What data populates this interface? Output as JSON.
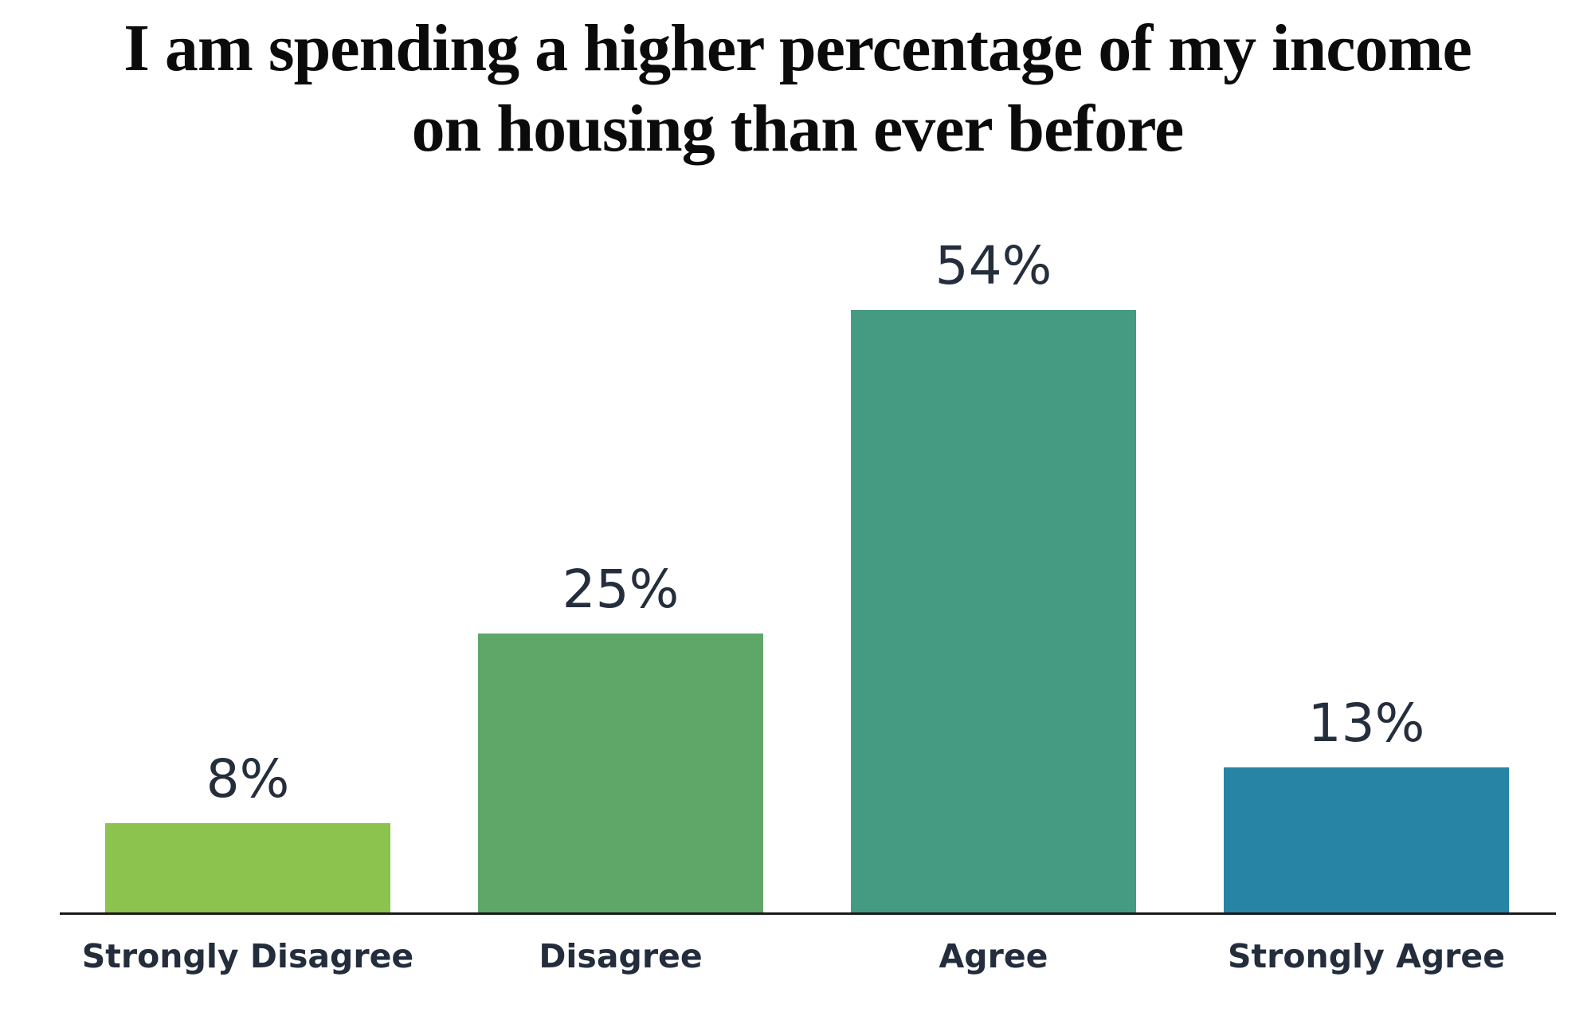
{
  "title_lines": [
    "I am spending a higher percentage of my income",
    "on housing than ever before"
  ],
  "chart_data": {
    "type": "bar",
    "title": "I am spending a higher percentage of my income on housing than ever before",
    "categories": [
      "Strongly Disagree",
      "Disagree",
      "Agree",
      "Strongly Agree"
    ],
    "values": [
      8,
      25,
      54,
      13
    ],
    "value_labels": [
      "8%",
      "25%",
      "54%",
      "13%"
    ],
    "bar_colors": [
      "#8cc34f",
      "#5fa768",
      "#459a82",
      "#2884a4"
    ],
    "xlabel": "",
    "ylabel": "",
    "ylim": [
      0,
      60
    ],
    "grid": false,
    "legend": false,
    "axis_line_color": "#1a1a1a",
    "value_label_color": "#242e3d",
    "category_label_color": "#232d3c",
    "title_color": "#0b0b0b",
    "background_color": "#ffffff"
  }
}
